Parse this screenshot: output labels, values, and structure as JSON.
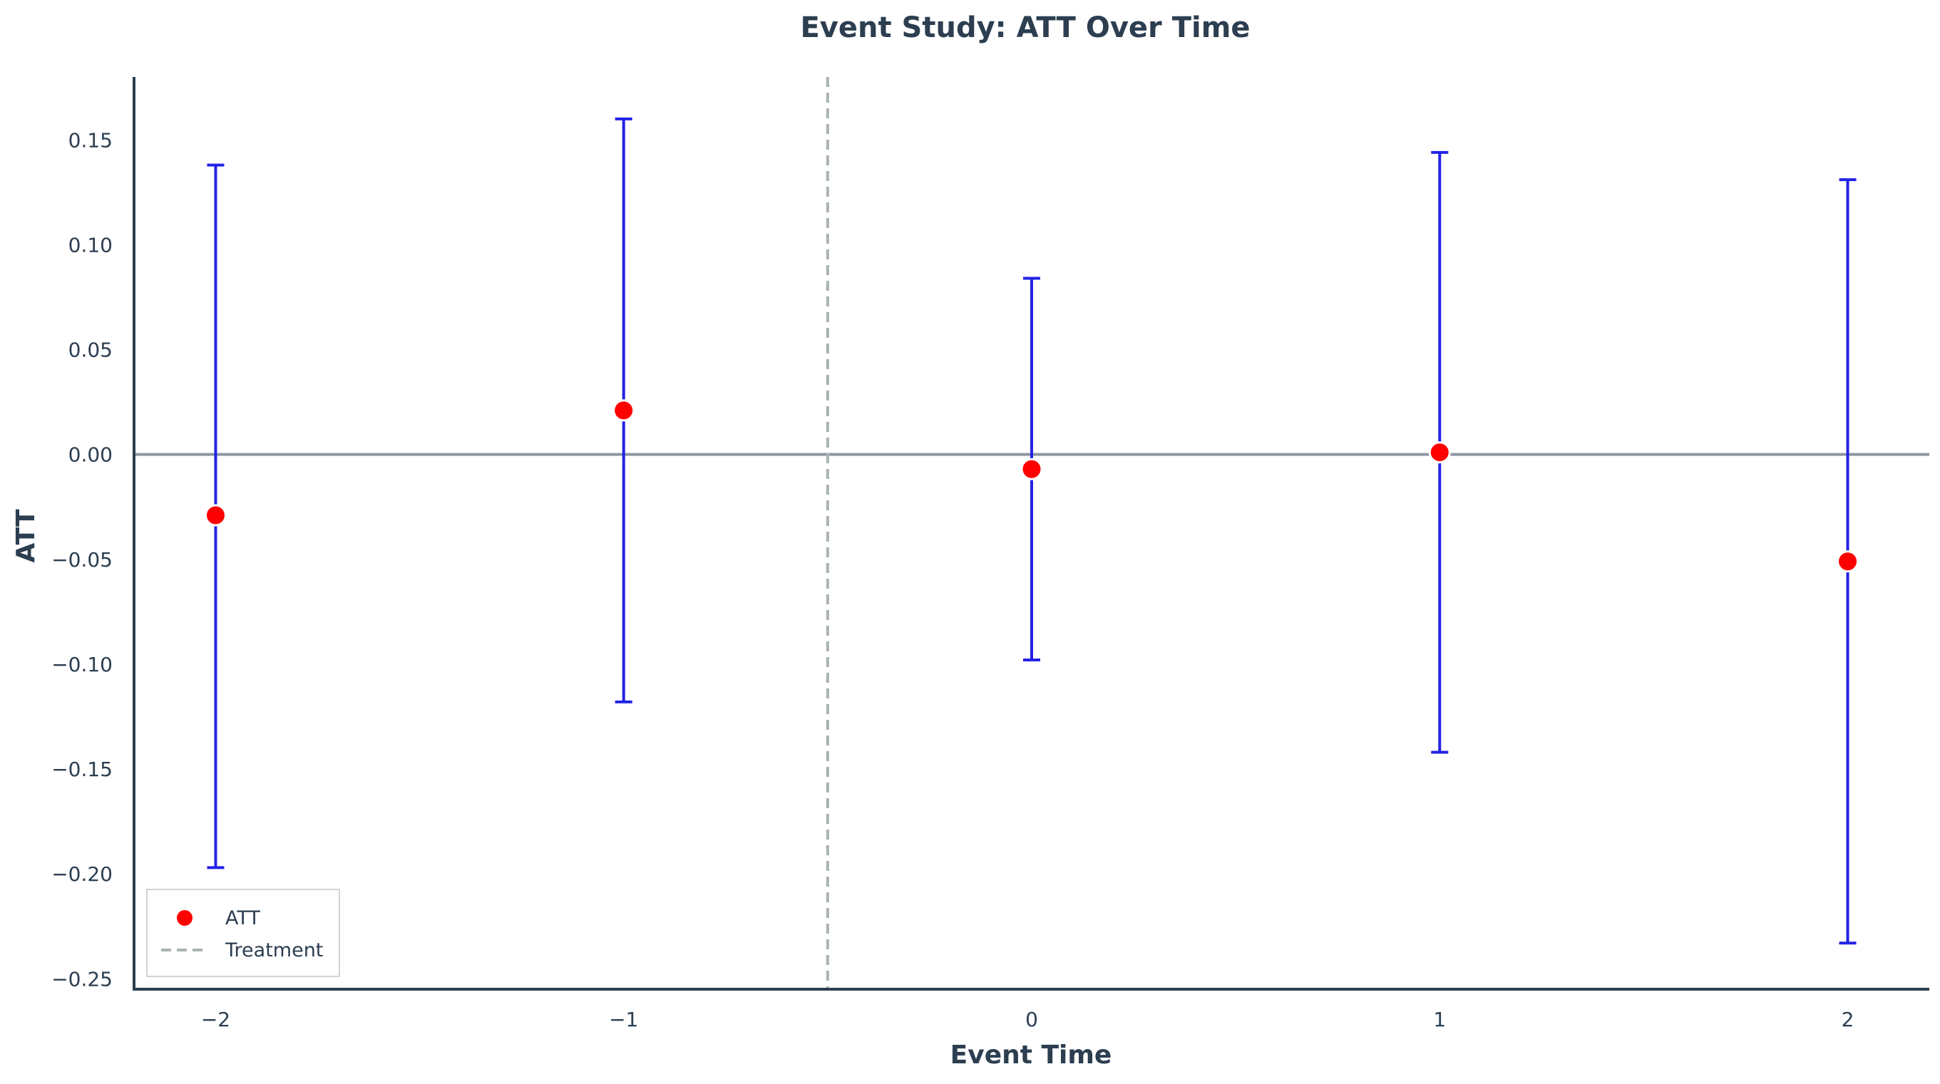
{
  "chart_data": {
    "type": "scatter",
    "title": "Event Study: ATT Over Time",
    "xlabel": "Event Time",
    "ylabel": "ATT",
    "xlim": [
      -2.2,
      2.2
    ],
    "ylim": [
      -0.255,
      0.18
    ],
    "x_ticks": [
      -2,
      -1,
      0,
      1,
      2
    ],
    "x_tick_labels": [
      "−2",
      "−1",
      "0",
      "1",
      "2"
    ],
    "y_ticks": [
      -0.25,
      -0.2,
      -0.15,
      -0.1,
      -0.05,
      0.0,
      0.05,
      0.1,
      0.15
    ],
    "y_tick_labels": [
      "−0.25",
      "−0.20",
      "−0.15",
      "−0.10",
      "−0.05",
      "0.00",
      "0.05",
      "0.10",
      "0.15"
    ],
    "series": [
      {
        "name": "ATT",
        "x": [
          -2,
          -1,
          0,
          1,
          2
        ],
        "y": [
          -0.029,
          0.021,
          -0.007,
          0.001,
          -0.051
        ],
        "ci_lower": [
          -0.197,
          -0.118,
          -0.098,
          -0.142,
          -0.233
        ],
        "ci_upper": [
          0.138,
          0.16,
          0.084,
          0.144,
          0.131
        ]
      }
    ],
    "reference_lines": {
      "horizontal_zero": 0,
      "treatment_x": -0.5
    },
    "legend": {
      "position": "lower-left",
      "entries": [
        "ATT",
        "Treatment"
      ]
    },
    "grid": false,
    "colors": {
      "point": "#ff0000",
      "errorbar": "#2323e6",
      "zero_line": "#8e96a3",
      "treatment_line": "#a9b3b1",
      "axis": "#2c3e50"
    }
  }
}
